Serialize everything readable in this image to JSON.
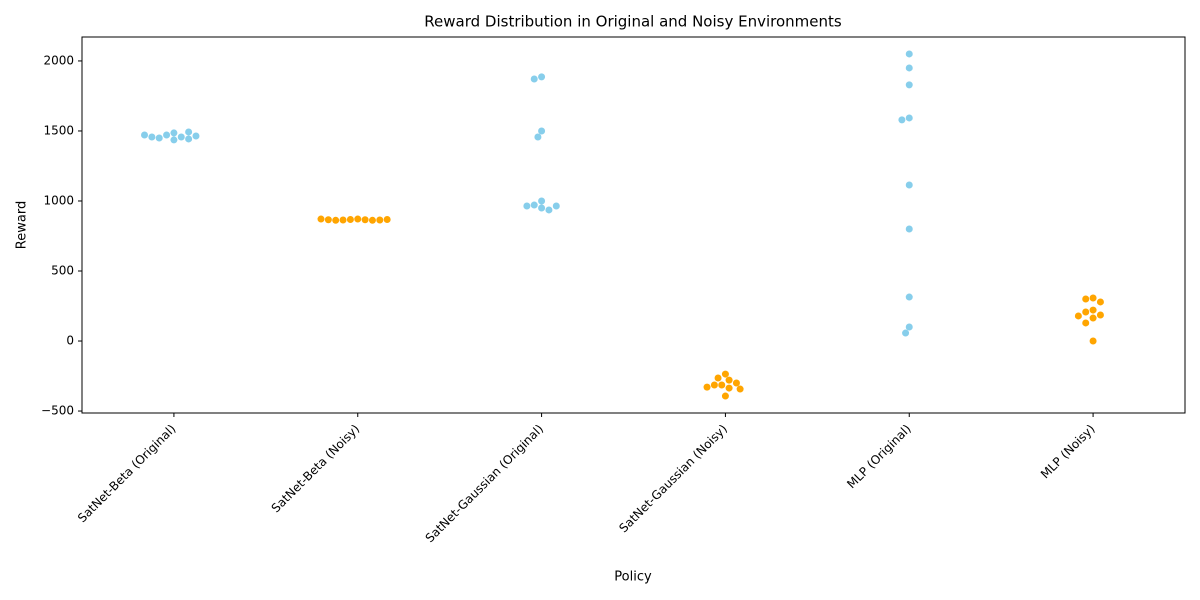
{
  "chart_data": {
    "type": "swarm",
    "title": "Reward Distribution in Original and Noisy Environments",
    "x_label": "Policy",
    "y_label": "Reward",
    "categories": [
      "SatNet-Beta (Original)",
      "SatNet-Beta (Noisy)",
      "SatNet-Gaussian (Original)",
      "SatNet-Gaussian (Noisy)",
      "MLP (Original)",
      "MLP (Noisy)"
    ],
    "colors": [
      "#87ceeb",
      "#ffa500",
      "#87ceeb",
      "#ffa500",
      "#87ceeb",
      "#ffa500"
    ],
    "values": [
      [
        1486,
        1471,
        1457,
        1450,
        1436,
        1493,
        1443,
        1457,
        1464,
        1471
      ],
      [
        871,
        868,
        866,
        864,
        862,
        862,
        864,
        866,
        868,
        871
      ],
      [
        1886,
        1871,
        1500,
        1457,
        1000,
        971,
        950,
        936,
        964,
        964
      ],
      [
        -236,
        -264,
        -279,
        -300,
        -314,
        -314,
        -336,
        -343,
        -329,
        -393
      ],
      [
        2050,
        1950,
        1829,
        1593,
        1579,
        1114,
        800,
        314,
        100,
        57
      ],
      [
        307,
        300,
        279,
        221,
        207,
        164,
        186,
        179,
        129,
        0
      ]
    ],
    "ylim": [
      -514,
      2171
    ],
    "yticks": [
      {
        "value": -500,
        "label": "−500"
      },
      0,
      500,
      1000,
      1500,
      2000
    ],
    "grid": false
  }
}
